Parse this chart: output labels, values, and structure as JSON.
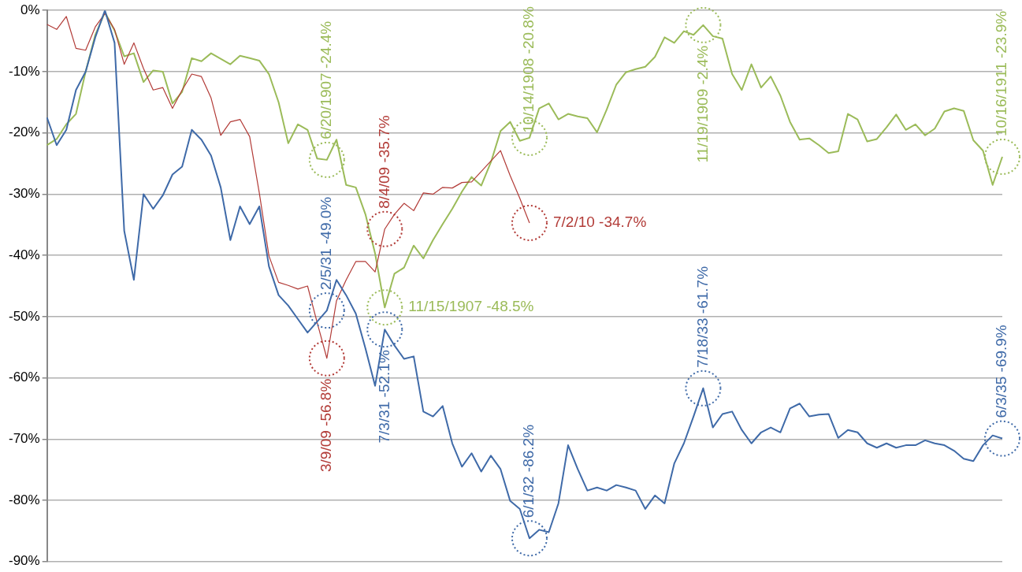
{
  "chart_data": {
    "type": "line",
    "categories": [
      null,
      null,
      null,
      null,
      null,
      null,
      null,
      null,
      null,
      null,
      null,
      null,
      null,
      null,
      null,
      null,
      null,
      null,
      null,
      null,
      null,
      null,
      null,
      null,
      null,
      null,
      null,
      null,
      null,
      null,
      null,
      null,
      null,
      null,
      null,
      null,
      null,
      null,
      null,
      null,
      null,
      null,
      null,
      null,
      null,
      null,
      null,
      null,
      null,
      null,
      null,
      null,
      null,
      null,
      null,
      null,
      null,
      null,
      null,
      null,
      null,
      null,
      null,
      null,
      null,
      null,
      null,
      null,
      null,
      null,
      null,
      null,
      null,
      null,
      null,
      null,
      null,
      null,
      null,
      null,
      null,
      null,
      null,
      null,
      null,
      null,
      null,
      null,
      null,
      null,
      null,
      null,
      null,
      null,
      null,
      null,
      null,
      null,
      null,
      null
    ],
    "series": [
      {
        "color": "#3f6aa8",
        "values": [
          -17.5,
          -22,
          -19.5,
          -13,
          -10,
          -4.4,
          0,
          -5.3,
          -36,
          -44,
          -30,
          -32.4,
          -30.2,
          -26.8,
          -25.5,
          -19.5,
          -21.1,
          -23.7,
          -28.9,
          -37.5,
          -32,
          -34.9,
          -32,
          -41.8,
          -46.5,
          -48.2,
          -50.4,
          -52.6,
          -50.8,
          -49.0,
          -44,
          -46.5,
          -49.5,
          -55.2,
          -61.3,
          -52.1,
          -54.7,
          -56.9,
          -56.5,
          -65.5,
          -66.3,
          -64.6,
          -70.7,
          -74.5,
          -72.3,
          -75.3,
          -72.7,
          -74.9,
          -80.1,
          -81.4,
          -86.2,
          -84.8,
          -85.2,
          -80.5,
          -71,
          -74.9,
          -78.4,
          -77.9,
          -78.4,
          -77.5,
          -77.9,
          -78.4,
          -81.4,
          -79.2,
          -80.5,
          -74,
          -70.7,
          -66.3,
          -61.7,
          -68.1,
          -65.9,
          -65.5,
          -68.5,
          -70.7,
          -68.9,
          -68.1,
          -68.9,
          -65,
          -64.2,
          -66.3,
          -66,
          -65.9,
          -69.8,
          -68.5,
          -68.9,
          -70.7,
          -71.4,
          -70.7,
          -71.4,
          -71,
          -71,
          -70.2,
          -70.7,
          -71,
          -71.9,
          -73.2,
          -73.6,
          -71,
          -69.4,
          -69.9
        ]
      },
      {
        "color": "#b23b37",
        "values": [
          -2.3,
          -3.1,
          -1,
          -6.2,
          -6.5,
          -2.7,
          -0.5,
          -3.1,
          -8.8,
          -5.3,
          -9.5,
          -13,
          -12.6,
          -16,
          -13,
          -10.4,
          -10.8,
          -14.3,
          -20.4,
          -18.2,
          -17.8,
          -20.6,
          -29.8,
          -40.1,
          -44.4,
          -44.9,
          -45.5,
          -45,
          -51,
          -56.8,
          -47.4,
          -44,
          -41,
          -41,
          -42.7,
          -35.7,
          -33.3,
          -31.5,
          -32.7,
          -29.8,
          -30,
          -28.9,
          -29,
          -28.1,
          -28,
          -26.3,
          -24.6,
          -22.9,
          -27,
          -30.7,
          -34.7,
          null,
          null,
          null,
          null,
          null,
          null,
          null,
          null,
          null,
          null,
          null,
          null,
          null,
          null,
          null,
          null,
          null,
          null,
          null,
          null,
          null,
          null,
          null,
          null,
          null,
          null,
          null,
          null,
          null,
          null,
          null,
          null,
          null,
          null,
          null,
          null,
          null,
          null,
          null,
          null,
          null,
          null,
          null,
          null,
          null,
          null,
          null,
          null,
          null
        ]
      },
      {
        "color": "#9bbb59",
        "values": [
          -22,
          -21,
          -18.6,
          -16.9,
          -10,
          -4,
          -0.3,
          -3.3,
          -7.5,
          -7,
          -11.7,
          -9.8,
          -10,
          -15.2,
          -13.3,
          -7.8,
          -8.3,
          -7,
          -7.9,
          -8.8,
          -7.4,
          -7.8,
          -8.2,
          -10.4,
          -15,
          -21.7,
          -18.6,
          -19.5,
          -24.2,
          -24.4,
          -21.1,
          -28.5,
          -28.9,
          -33.3,
          -39.7,
          -48.5,
          -43,
          -42,
          -38.4,
          -40.5,
          -37.5,
          -34.9,
          -32.4,
          -29.6,
          -27.2,
          -28.6,
          -24.8,
          -19.7,
          -18.2,
          -21.3,
          -20.8,
          -16,
          -15.2,
          -17.8,
          -16.9,
          -17.3,
          -17.6,
          -19.9,
          -16.2,
          -12.1,
          -10.1,
          -9.6,
          -9.2,
          -7.6,
          -4.4,
          -5.3,
          -3.4,
          -4,
          -2.4,
          -4.2,
          -4.6,
          -10.4,
          -13,
          -8.8,
          -12.6,
          -10.8,
          -13.9,
          -18.2,
          -21.1,
          -20.9,
          -22,
          -23.3,
          -23,
          -16.9,
          -17.8,
          -21.4,
          -21,
          -19.1,
          -17,
          -19.5,
          -18.6,
          -20.4,
          -19.3,
          -16.5,
          -16,
          -16.4,
          -21.2,
          -22.9,
          -28.5,
          -23.9
        ]
      }
    ],
    "ylim": [
      -90,
      0
    ],
    "yticks": [
      {
        "value": 0,
        "label": "0%"
      },
      {
        "value": -10,
        "label": "-10%"
      },
      {
        "value": -20,
        "label": "-20%"
      },
      {
        "value": -30,
        "label": "-30%"
      },
      {
        "value": -40,
        "label": "-40%"
      },
      {
        "value": -50,
        "label": "-50%"
      },
      {
        "value": -60,
        "label": "-60%"
      },
      {
        "value": -70,
        "label": "-70%"
      },
      {
        "value": -80,
        "label": "-80%"
      },
      {
        "value": -90,
        "label": "-90%"
      }
    ],
    "grid": "y",
    "tick_labels": "y",
    "annotations": [
      {
        "text": "6/20/1907 -24.4%",
        "y": -24.4
      },
      {
        "text": "2/5/31 -49.0%",
        "y": -49.0
      },
      {
        "text": "3/9/09 -56.8%",
        "y": -56.8
      },
      {
        "text": "7/3/31 -52.1%",
        "y": -52.1
      },
      {
        "text": "8/4/09 -35.7%",
        "y": -35.7
      },
      "11/15/1907 -48.5%",
      "7/2/10 -34.7%",
      {
        "text": "10/14/1908 -20.8%",
        "y": -20.8
      },
      {
        "text": "6/1/32 -86.2%",
        "y": -86.2
      },
      {
        "text": "11/19/1909 -2.4%",
        "y": -2.4
      },
      {
        "text": "7/18/33 -61.7%",
        "y": -61.7
      },
      {
        "text": "6/3/35 -69.9%",
        "y": -69.9
      },
      {
        "text": "10/16/1911 -23.9%",
        "y": -23.9
      }
    ]
  }
}
